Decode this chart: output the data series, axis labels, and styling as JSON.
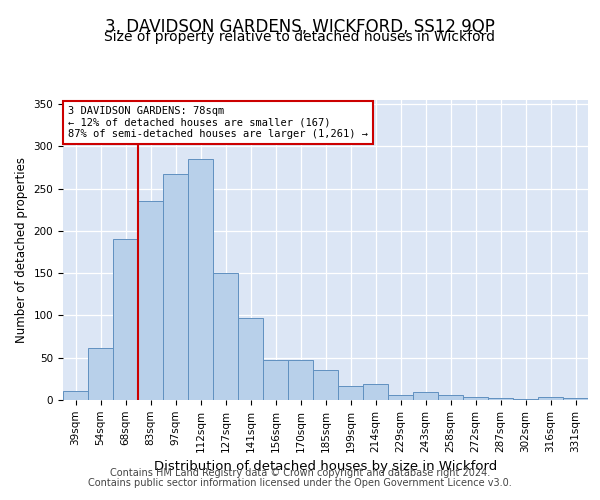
{
  "title": "3, DAVIDSON GARDENS, WICKFORD, SS12 9QP",
  "subtitle": "Size of property relative to detached houses in Wickford",
  "xlabel": "Distribution of detached houses by size in Wickford",
  "ylabel": "Number of detached properties",
  "categories": [
    "39sqm",
    "54sqm",
    "68sqm",
    "83sqm",
    "97sqm",
    "112sqm",
    "127sqm",
    "141sqm",
    "156sqm",
    "170sqm",
    "185sqm",
    "199sqm",
    "214sqm",
    "229sqm",
    "243sqm",
    "258sqm",
    "272sqm",
    "287sqm",
    "302sqm",
    "316sqm",
    "331sqm"
  ],
  "values": [
    11,
    61,
    191,
    236,
    268,
    285,
    150,
    97,
    47,
    47,
    35,
    17,
    19,
    6,
    9,
    6,
    3,
    2,
    1,
    3,
    2
  ],
  "bar_color": "#b8d0ea",
  "bar_edge_color": "#6090c0",
  "bg_color": "#dce6f5",
  "vline_color": "#cc0000",
  "annotation_text": "3 DAVIDSON GARDENS: 78sqm\n← 12% of detached houses are smaller (167)\n87% of semi-detached houses are larger (1,261) →",
  "annotation_box_color": "#ffffff",
  "annotation_box_edge": "#cc0000",
  "footer1": "Contains HM Land Registry data © Crown copyright and database right 2024.",
  "footer2": "Contains public sector information licensed under the Open Government Licence v3.0.",
  "ylim": [
    0,
    355
  ],
  "yticks": [
    0,
    50,
    100,
    150,
    200,
    250,
    300,
    350
  ],
  "title_fontsize": 12,
  "subtitle_fontsize": 10,
  "xlabel_fontsize": 9.5,
  "ylabel_fontsize": 8.5,
  "tick_fontsize": 7.5,
  "footer_fontsize": 7,
  "vline_index": 2.5
}
